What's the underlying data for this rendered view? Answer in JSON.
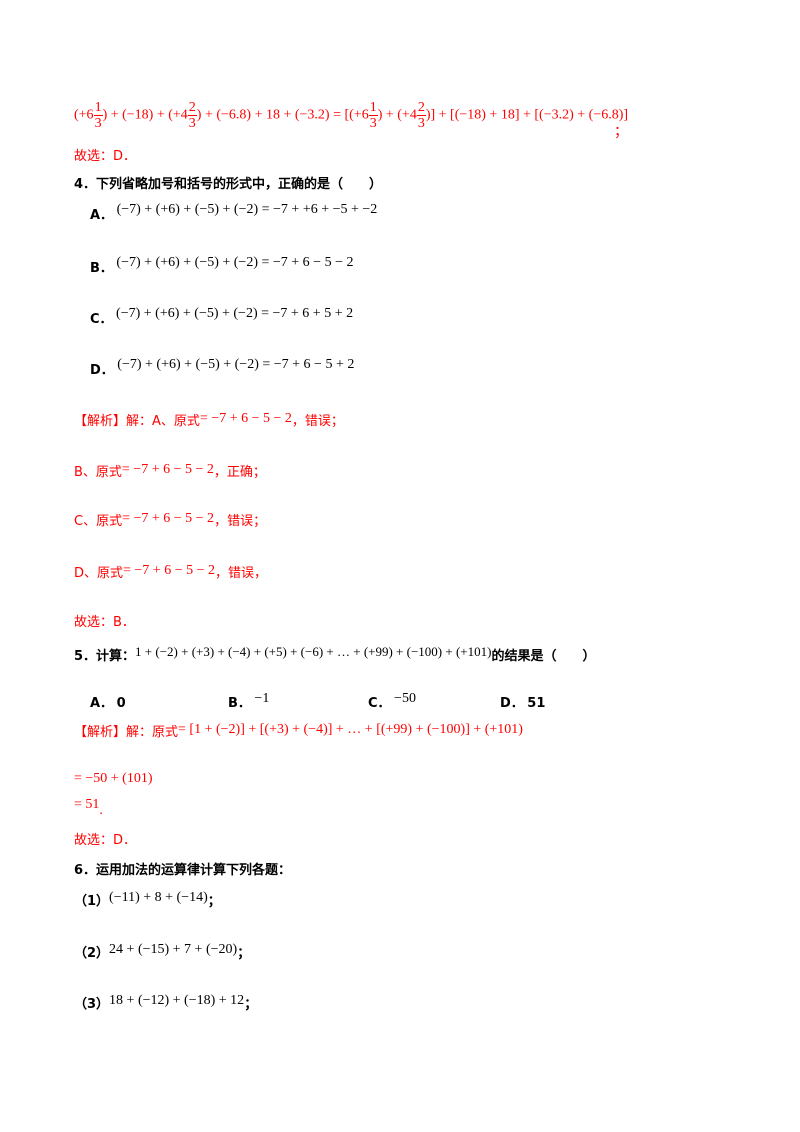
{
  "q3_solution": {
    "expr": [
      {
        "t": "(+6"
      },
      {
        "n": "1",
        "d": "3"
      },
      {
        "t": ") + (−18) + (+4"
      },
      {
        "n": "2",
        "d": "3"
      },
      {
        "t": ") + (−6.8) + 18 + (−3.2) = [(+6"
      },
      {
        "n": "1",
        "d": "3"
      },
      {
        "t": ") + (+4"
      },
      {
        "n": "2",
        "d": "3"
      },
      {
        "t": ")] + [(−18) + 18] + [(−3.2) + (−6.8)]"
      }
    ],
    "end": "；",
    "answer": "故选：D．"
  },
  "q4": {
    "stem": "4．下列省略加号和括号的形式中，正确的是（　　）",
    "options": [
      {
        "label": "A．",
        "expr": "(−7) + (+6) + (−5) + (−2) = −7 + +6 + −5 + −2"
      },
      {
        "label": "B．",
        "expr": "(−7) + (+6) + (−5) + (−2) = −7 + 6 − 5 − 2"
      },
      {
        "label": "C．",
        "expr": "(−7) + (+6) + (−5) + (−2) = −7 + 6 + 5 + 2"
      },
      {
        "label": "D．",
        "expr": "(−7) + (+6) + (−5) + (−2) = −7 + 6 − 5 + 2"
      }
    ],
    "solution": [
      {
        "pre": "【解析】解：A、原式",
        "expr": "= −7 + 6 − 5 − 2",
        "post": "，错误；"
      },
      {
        "pre": "B、原式",
        "expr": "= −7 + 6 − 5 − 2",
        "post": "，正确；"
      },
      {
        "pre": "C、原式",
        "expr": "= −7 + 6 − 5 − 2",
        "post": "，错误；"
      },
      {
        "pre": "D、原式",
        "expr": "= −7 + 6 − 5 − 2",
        "post": "，错误，"
      }
    ],
    "answer": "故选：B．"
  },
  "q5": {
    "stem_pre": "5．计算：",
    "stem_expr": "1 + (−2) + (+3) + (−4) + (+5) + (−6) + … + (+99) + (−100) + (+101)",
    "stem_post": "的结果是（　　）",
    "options": [
      {
        "label": "A．",
        "val": "0"
      },
      {
        "label": "B．",
        "val": "−1"
      },
      {
        "label": "C．",
        "val": "−50"
      },
      {
        "label": "D．",
        "val": "51"
      }
    ],
    "sol_pre": "【解析】解：原式",
    "sol_expr": "= [1 + (−2)] + [(+3) + (−4)] + … + [(+99) + (−100)] + (+101)",
    "step1": "= −50 + (101)",
    "step2": "= 51",
    "step2_end": ".",
    "answer": "故选：D．"
  },
  "q6": {
    "stem": "6．运用加法的运算律计算下列各题：",
    "items": [
      {
        "label": "（1）",
        "expr": "(−11) + 8 + (−14)",
        "end": "；"
      },
      {
        "label": "（2）",
        "expr": "24 + (−15) + 7 + (−20)",
        "end": "；"
      },
      {
        "label": "（3）",
        "expr": "18 + (−12) + (−18) + 12",
        "end": "；"
      }
    ]
  },
  "colors": {
    "solution": "#ff0000",
    "text": "#000000"
  }
}
